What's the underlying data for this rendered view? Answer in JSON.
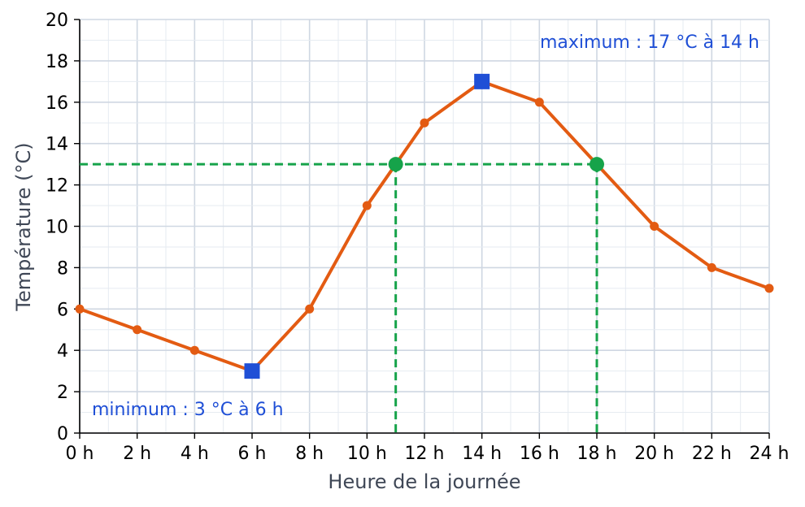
{
  "chart_data": {
    "type": "line",
    "xlabel": "Heure de la journée",
    "ylabel": "Température (°C)",
    "xlim": [
      0,
      24
    ],
    "ylim": [
      0,
      20
    ],
    "x_ticks": [
      0,
      2,
      4,
      6,
      8,
      10,
      12,
      14,
      16,
      18,
      20,
      22,
      24
    ],
    "x_tick_labels": [
      "0 h",
      "2 h",
      "4 h",
      "6 h",
      "8 h",
      "10 h",
      "12 h",
      "14 h",
      "16 h",
      "18 h",
      "20 h",
      "22 h",
      "24 h"
    ],
    "y_ticks": [
      0,
      2,
      4,
      6,
      8,
      10,
      12,
      14,
      16,
      18,
      20
    ],
    "y_tick_labels": [
      "0",
      "2",
      "4",
      "6",
      "8",
      "10",
      "12",
      "14",
      "16",
      "18",
      "20"
    ],
    "grid": true,
    "minor_grid": true,
    "series": [
      {
        "color": "#e35b12",
        "x": [
          0,
          2,
          4,
          6,
          8,
          10,
          11,
          12,
          14,
          16,
          18,
          20,
          22,
          24
        ],
        "y": [
          6,
          5,
          4,
          3,
          6,
          11,
          13,
          15,
          17,
          16,
          13,
          10,
          8,
          7
        ]
      }
    ],
    "extrema": {
      "color": "#1f4fd6",
      "points": [
        {
          "x": 6,
          "y": 3
        },
        {
          "x": 14,
          "y": 17
        }
      ]
    },
    "threshold": {
      "y": 13,
      "crossings": [
        11,
        18
      ],
      "color": "#16a34a"
    },
    "annotations": [
      {
        "text": "minimum : 3 °C à 6 h",
        "position": "bottom-left"
      },
      {
        "text": "maximum : 17 °C à 14 h",
        "position": "top-right"
      }
    ]
  }
}
